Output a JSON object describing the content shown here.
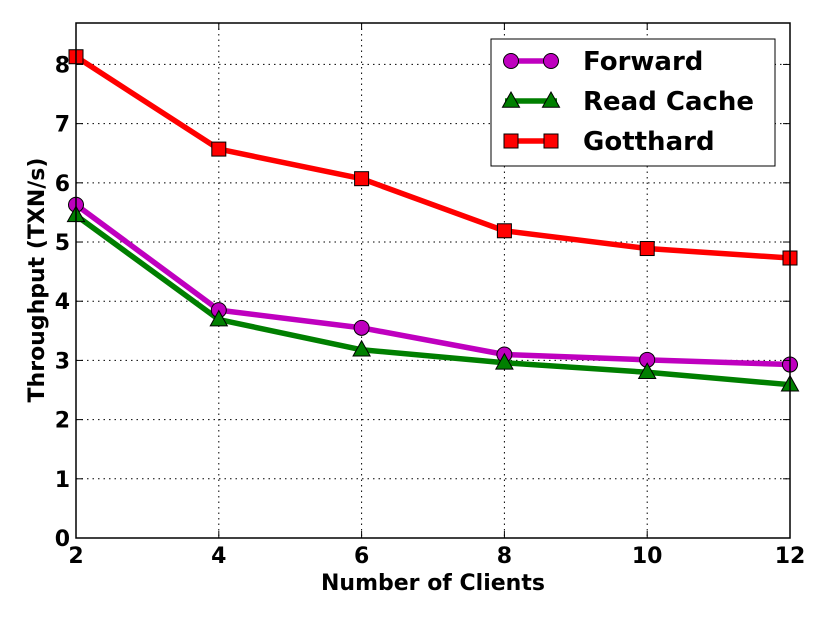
{
  "chart_data": {
    "type": "line",
    "x": [
      2,
      4,
      6,
      8,
      10,
      12
    ],
    "xlabel": "Number of Clients",
    "ylabel": "Throughput (TXN/s)",
    "xlim": [
      2,
      12
    ],
    "ylim": [
      0,
      8.7
    ],
    "x_ticks": [
      2,
      4,
      6,
      8,
      10,
      12
    ],
    "y_ticks": [
      0,
      1,
      2,
      3,
      4,
      5,
      6,
      7,
      8
    ],
    "grid": true,
    "legend_position": "top-right",
    "series": [
      {
        "name": "Forward",
        "values": [
          5.63,
          3.85,
          3.55,
          3.1,
          3.01,
          2.93
        ],
        "color": "#bf00bf",
        "marker": "circle"
      },
      {
        "name": "Read Cache",
        "values": [
          5.45,
          3.69,
          3.18,
          2.96,
          2.8,
          2.59
        ],
        "color": "#007f00",
        "marker": "triangle"
      },
      {
        "name": "Gotthard",
        "values": [
          8.13,
          6.57,
          6.07,
          5.19,
          4.89,
          4.73
        ],
        "color": "#ff0000",
        "marker": "square"
      }
    ]
  }
}
